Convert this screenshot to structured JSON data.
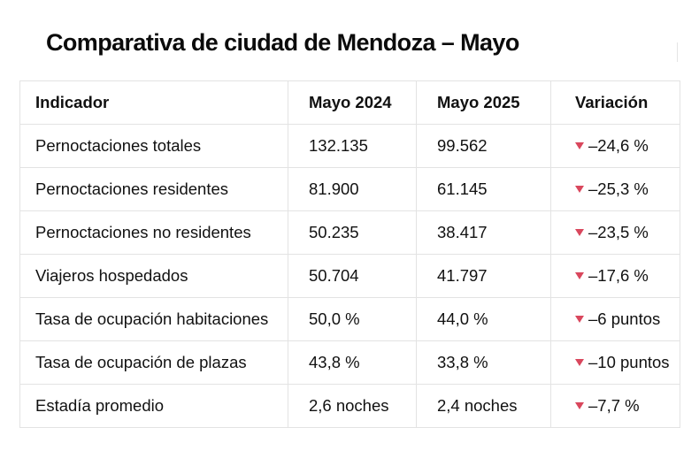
{
  "title": "Comparativa de ciudad de Mendoza – Mayo",
  "colors": {
    "decrease_indicator": "#d9475d",
    "grid": "#e3e3e3",
    "text": "#111111"
  },
  "table": {
    "headers": [
      "Indicador",
      "Mayo 2024",
      "Mayo 2025",
      "Variación"
    ],
    "rows": [
      {
        "indicator": "Pernoctaciones totales",
        "may_2024": "132.135",
        "may_2025": "99.562",
        "variation": "–24,6 %",
        "trend_icon": "triangle-down-icon"
      },
      {
        "indicator": "Pernoctaciones residentes",
        "may_2024": "81.900",
        "may_2025": "61.145",
        "variation": "–25,3 %",
        "trend_icon": "triangle-down-icon"
      },
      {
        "indicator": "Pernoctaciones no residentes",
        "may_2024": "50.235",
        "may_2025": "38.417",
        "variation": "–23,5 %",
        "trend_icon": "triangle-down-icon"
      },
      {
        "indicator": "Viajeros hospedados",
        "may_2024": "50.704",
        "may_2025": "41.797",
        "variation": "–17,6 %",
        "trend_icon": "triangle-down-icon"
      },
      {
        "indicator": "Tasa de ocupación habitaciones",
        "may_2024": "50,0 %",
        "may_2025": "44,0 %",
        "variation": "–6 puntos",
        "trend_icon": "triangle-down-icon"
      },
      {
        "indicator": "Tasa de ocupación de plazas",
        "may_2024": "43,8 %",
        "may_2025": "33,8 %",
        "variation": "–10 puntos",
        "trend_icon": "triangle-down-icon"
      },
      {
        "indicator": "Estadía promedio",
        "may_2024": "2,6 noches",
        "may_2025": "2,4 noches",
        "variation": "–7,7 %",
        "trend_icon": "triangle-down-icon"
      }
    ]
  }
}
